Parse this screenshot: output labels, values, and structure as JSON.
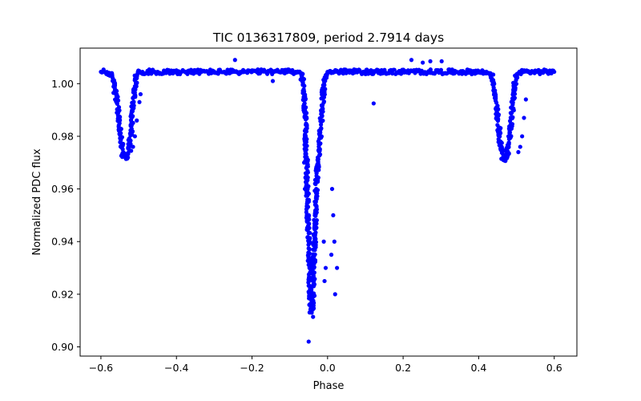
{
  "chart_data": {
    "type": "scatter",
    "title": "TIC 0136317809, period 2.7914 days",
    "xlabel": "Phase",
    "ylabel": "Normalized PDC flux",
    "xlim": [
      -0.655,
      0.66
    ],
    "ylim": [
      0.8965,
      1.0135
    ],
    "xticks": [
      -0.6,
      -0.4,
      -0.2,
      0.0,
      0.2,
      0.4,
      0.6
    ],
    "xtick_labels": [
      "−0.6",
      "−0.4",
      "−0.2",
      "0.0",
      "0.2",
      "0.4",
      "0.6"
    ],
    "yticks": [
      0.9,
      0.92,
      0.94,
      0.96,
      0.98,
      1.0
    ],
    "ytick_labels": [
      "0.90",
      "0.92",
      "0.94",
      "0.96",
      "0.98",
      "1.00"
    ],
    "grid": false,
    "marker_color": "#0000ff",
    "baseline_flux": 1.0045,
    "series": [
      {
        "name": "",
        "x": [
          -0.6,
          -0.59,
          -0.58,
          -0.57,
          -0.565,
          -0.56,
          -0.555,
          -0.55,
          -0.545,
          -0.54,
          -0.535,
          -0.53,
          -0.525,
          -0.52,
          -0.515,
          -0.51,
          -0.505,
          -0.5,
          -0.49,
          -0.47,
          -0.45,
          -0.4,
          -0.35,
          -0.3,
          -0.25,
          -0.2,
          -0.15,
          -0.12,
          -0.1,
          -0.08,
          -0.07,
          -0.065,
          -0.06,
          -0.058,
          -0.056,
          -0.054,
          -0.052,
          -0.05,
          -0.048,
          -0.046,
          -0.044,
          -0.042,
          -0.04,
          -0.038,
          -0.036,
          -0.034,
          -0.032,
          -0.03,
          -0.025,
          -0.02,
          -0.015,
          -0.01,
          -0.005,
          0.0,
          0.005,
          0.01,
          0.015,
          0.02,
          0.03,
          0.05,
          0.1,
          0.15,
          0.2,
          0.25,
          0.3,
          0.35,
          0.4,
          0.43,
          0.44,
          0.445,
          0.45,
          0.455,
          0.46,
          0.465,
          0.47,
          0.475,
          0.48,
          0.485,
          0.49,
          0.495,
          0.5,
          0.51,
          0.53,
          0.56,
          0.59,
          0.6,
          -0.245,
          -0.145,
          0.122,
          0.222,
          0.252,
          0.272,
          0.302,
          -0.05,
          -0.06,
          -0.055,
          -0.062,
          0.02,
          0.025,
          0.018,
          0.015,
          0.012,
          -0.01,
          -0.005,
          -0.008,
          0.01,
          -0.515,
          -0.51,
          -0.505,
          -0.498,
          -0.52,
          -0.495,
          0.515,
          0.51,
          0.505,
          0.52,
          0.525
        ],
        "y": [
          1.0045,
          1.0045,
          1.004,
          1.003,
          1.0,
          0.996,
          0.99,
          0.983,
          0.976,
          0.9725,
          0.972,
          0.973,
          0.976,
          0.982,
          0.991,
          0.999,
          1.003,
          1.0045,
          1.0045,
          1.0045,
          1.0045,
          1.0045,
          1.0045,
          1.0045,
          1.0045,
          1.0045,
          1.0045,
          1.0045,
          1.0045,
          1.0045,
          1.004,
          1.0,
          0.99,
          0.98,
          0.97,
          0.96,
          0.95,
          0.94,
          0.93,
          0.92,
          0.915,
          0.913,
          0.915,
          0.92,
          0.93,
          0.94,
          0.95,
          0.96,
          0.97,
          0.98,
          0.99,
          0.998,
          1.003,
          1.0045,
          1.0045,
          1.0045,
          1.0045,
          1.0045,
          1.0045,
          1.0045,
          1.0045,
          1.0045,
          1.0045,
          1.0045,
          1.0045,
          1.0045,
          1.0045,
          1.004,
          1.0,
          0.995,
          0.988,
          0.981,
          0.975,
          0.972,
          0.9715,
          0.973,
          0.977,
          0.984,
          0.992,
          0.999,
          1.003,
          1.0045,
          1.0045,
          1.0045,
          1.0045,
          1.0045,
          1.009,
          1.001,
          0.9925,
          1.009,
          1.008,
          1.0085,
          1.0085,
          0.902,
          0.96,
          0.95,
          0.97,
          0.92,
          0.93,
          0.94,
          0.95,
          0.96,
          0.94,
          0.93,
          0.925,
          0.935,
          0.976,
          0.98,
          0.986,
          0.993,
          0.9745,
          0.996,
          0.98,
          0.976,
          0.974,
          0.987,
          0.994
        ]
      }
    ]
  }
}
